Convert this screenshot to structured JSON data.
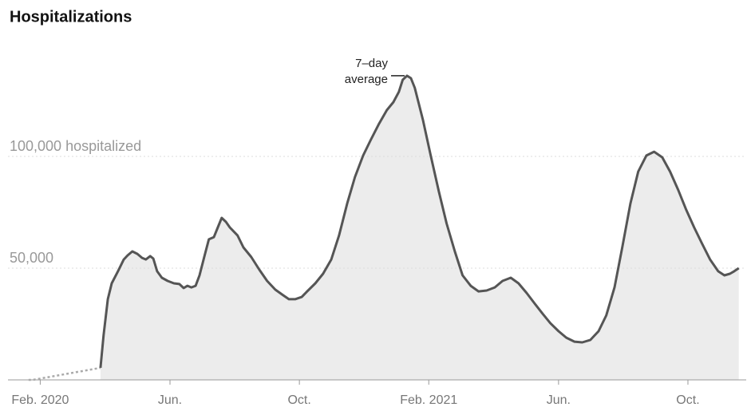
{
  "chart_data": {
    "type": "line",
    "title": "Hospitalizations",
    "annotation": [
      "7–day",
      "average"
    ],
    "xlim": [
      2020,
      2021.9
    ],
    "xticks": [
      {
        "value": 2020.083,
        "label": "Feb. 2020"
      },
      {
        "value": 2020.417,
        "label": "Jun."
      },
      {
        "value": 2020.75,
        "label": "Oct."
      },
      {
        "value": 2021.083,
        "label": "Feb. 2021"
      },
      {
        "value": 2021.417,
        "label": "Jun."
      },
      {
        "value": 2021.75,
        "label": "Oct."
      }
    ],
    "ylim": [
      0,
      140000
    ],
    "yticks": [
      {
        "value": 50000,
        "label": "50,000"
      },
      {
        "value": 100000,
        "label": "100,000 hospitalized"
      }
    ],
    "grid": true,
    "area_color": "#ececec",
    "series": [
      {
        "color": "#aaaaaa",
        "dashed": true,
        "x": [
          2020.053,
          2020.064,
          2020.238
        ],
        "values": [
          0,
          0,
          5400
        ]
      },
      {
        "color": "#555555",
        "dashed": false,
        "x": [
          2020.238,
          2020.246,
          2020.257,
          2020.267,
          2020.283,
          2020.298,
          2020.308,
          2020.32,
          2020.333,
          2020.345,
          2020.355,
          2020.366,
          2020.374,
          2020.384,
          2020.396,
          2020.411,
          2020.427,
          2020.441,
          2020.452,
          2020.462,
          2020.472,
          2020.483,
          2020.493,
          2020.505,
          2020.517,
          2020.53,
          2020.54,
          2020.55,
          2020.561,
          2020.571,
          2020.581,
          2020.591,
          2020.606,
          2020.626,
          2020.647,
          2020.667,
          2020.688,
          2020.708,
          2020.723,
          2020.739,
          2020.756,
          2020.77,
          2020.791,
          2020.811,
          2020.832,
          2020.852,
          2020.873,
          2020.893,
          2020.914,
          2020.934,
          2020.955,
          2020.975,
          2020.992,
          2021.006,
          2021.016,
          2021.027,
          2021.037,
          2021.047,
          2021.068,
          2021.088,
          2021.109,
          2021.129,
          2021.15,
          2021.17,
          2021.191,
          2021.211,
          2021.232,
          2021.253,
          2021.273,
          2021.294,
          2021.314,
          2021.335,
          2021.355,
          2021.376,
          2021.396,
          2021.417,
          2021.437,
          2021.458,
          2021.478,
          2021.499,
          2021.52,
          2021.54,
          2021.561,
          2021.581,
          2021.602,
          2021.622,
          2021.643,
          2021.663,
          2021.684,
          2021.704,
          2021.725,
          2021.745,
          2021.766,
          2021.786,
          2021.807,
          2021.828,
          2021.844,
          2021.858,
          2021.869,
          2021.881
        ],
        "values": [
          5400,
          20000,
          36100,
          43200,
          48600,
          53900,
          55700,
          57500,
          56400,
          54600,
          53900,
          55400,
          54300,
          48600,
          45700,
          44300,
          43200,
          42900,
          41100,
          42100,
          41400,
          42100,
          46800,
          55000,
          62900,
          63900,
          68200,
          72500,
          70700,
          68200,
          66400,
          64600,
          59300,
          55000,
          49300,
          44300,
          40400,
          37900,
          36100,
          36100,
          37100,
          39600,
          43200,
          47500,
          53900,
          64600,
          78900,
          90700,
          100400,
          107500,
          114600,
          120700,
          124300,
          128900,
          134300,
          136100,
          135000,
          130700,
          116400,
          100400,
          84300,
          70000,
          57500,
          46800,
          42100,
          39600,
          40000,
          41400,
          44300,
          45700,
          43200,
          38900,
          34300,
          29600,
          25400,
          21800,
          18900,
          17100,
          16800,
          17900,
          21800,
          28900,
          41400,
          59300,
          78900,
          93200,
          100400,
          102100,
          99600,
          93200,
          85000,
          76400,
          68200,
          61100,
          53900,
          48600,
          46800,
          47500,
          48600,
          50000
        ]
      }
    ]
  }
}
